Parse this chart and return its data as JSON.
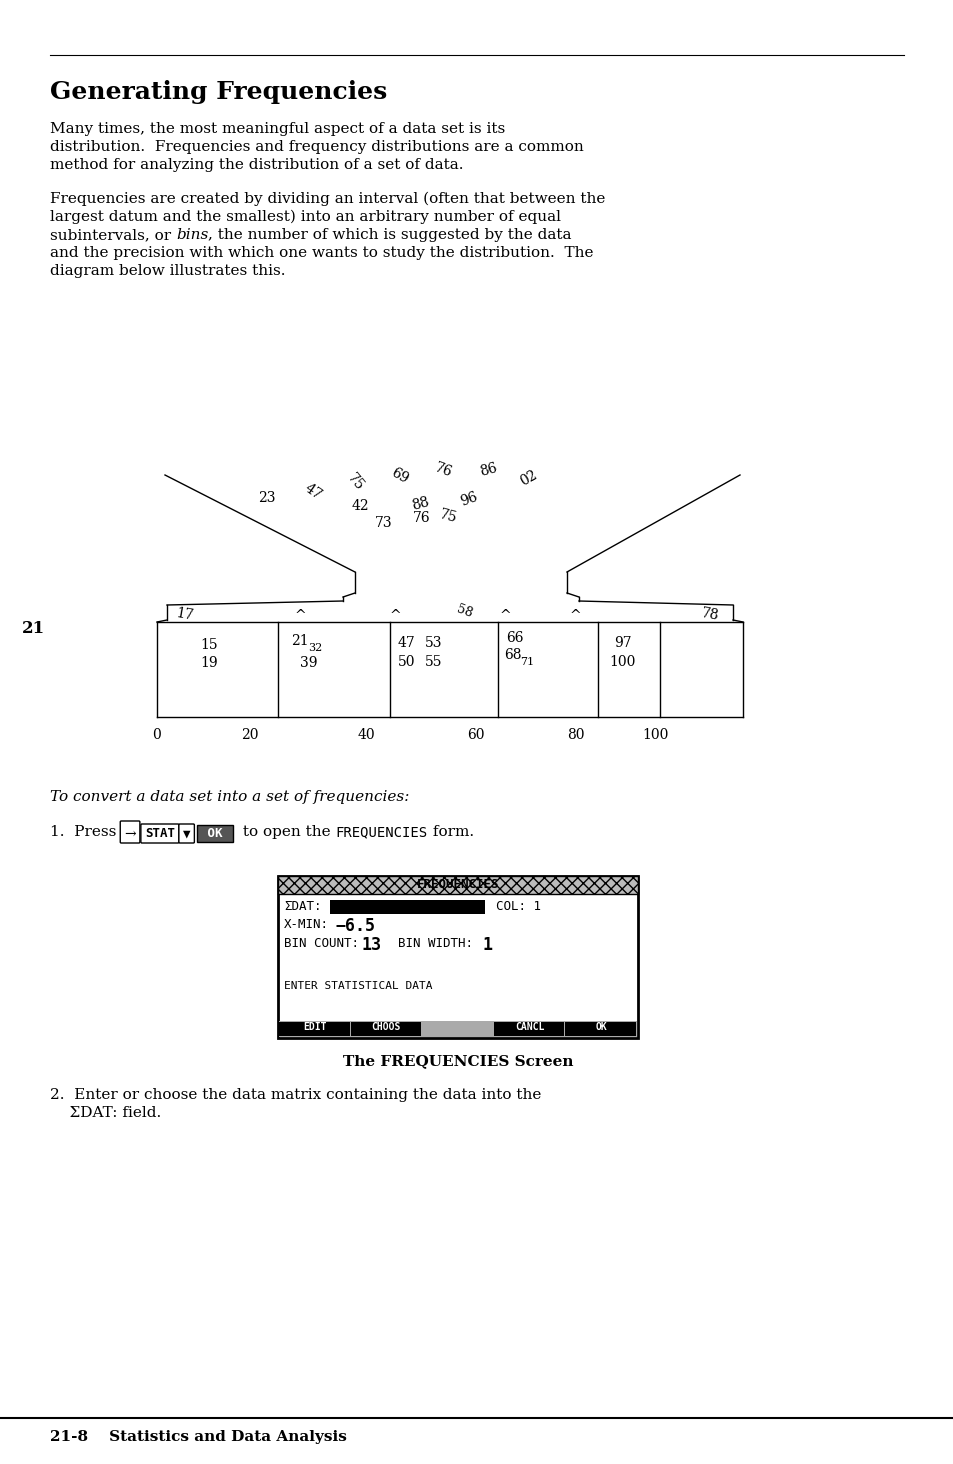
{
  "bg_color": "#ffffff",
  "title": "Generating Frequencies",
  "para1_lines": [
    "Many times, the most meaningful aspect of a data set is its",
    "distribution.  Frequencies and frequency distributions are a common",
    "method for analyzing the distribution of a set of data."
  ],
  "para2_lines": [
    [
      [
        "Frequencies are created by dividing an interval (often that between the",
        "normal"
      ]
    ],
    [
      [
        "largest datum and the smallest) into an arbitrary number of equal",
        "normal"
      ]
    ],
    [
      [
        "subintervals, or ",
        "normal"
      ],
      [
        "bins",
        "italic"
      ],
      [
        ", the number of which is suggested by the data",
        "normal"
      ]
    ],
    [
      [
        "and the precision with which one wants to study the distribution.  The",
        "normal"
      ]
    ],
    [
      [
        "diagram below illustrates this.",
        "normal"
      ]
    ]
  ],
  "section_num": "21",
  "intro_line": "To convert a data set into a set of frequencies:",
  "step2_lines": [
    "2.  Enter or choose the data matrix containing the data into the",
    "    ΣDAT: field."
  ],
  "footer": "21-8    Statistics and Data Analysis",
  "screen_caption": "The FREQUENCIES Screen"
}
